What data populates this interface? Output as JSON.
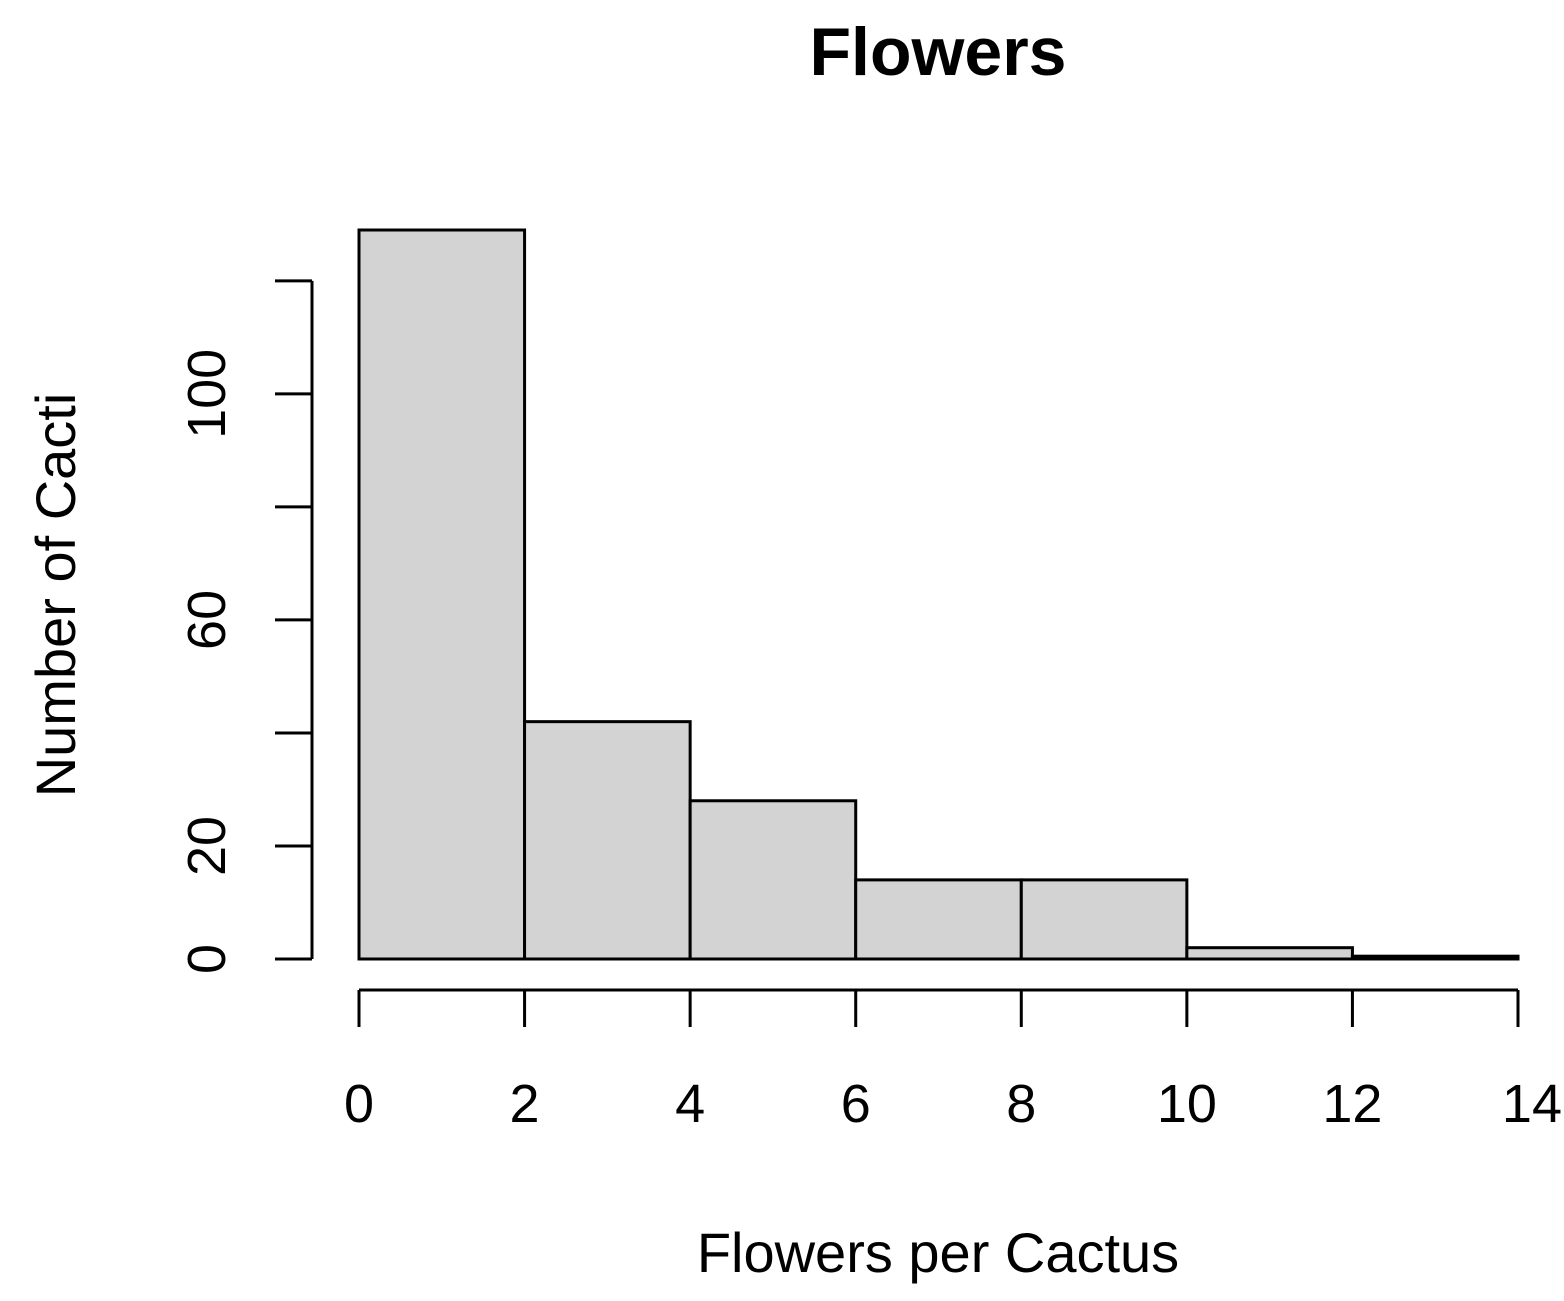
{
  "chart_data": {
    "type": "bar",
    "histogram": true,
    "title": "Flowers",
    "xlabel": "Flowers per Cactus",
    "ylabel": "Number of Cacti",
    "bins": [
      {
        "from": 0,
        "to": 2,
        "count": 129
      },
      {
        "from": 2,
        "to": 4,
        "count": 42
      },
      {
        "from": 4,
        "to": 6,
        "count": 28
      },
      {
        "from": 6,
        "to": 8,
        "count": 14
      },
      {
        "from": 8,
        "to": 10,
        "count": 14
      },
      {
        "from": 10,
        "to": 12,
        "count": 2
      },
      {
        "from": 12,
        "to": 14,
        "count": 0.5
      }
    ],
    "xlim": [
      0,
      14
    ],
    "ylim": [
      0,
      129
    ],
    "x_ticks": [
      0,
      2,
      4,
      6,
      8,
      10,
      12,
      14
    ],
    "y_ticks": [
      0,
      20,
      40,
      60,
      80,
      100,
      120
    ],
    "y_tick_labels": [
      "0",
      "20",
      "",
      "60",
      "",
      "100",
      ""
    ],
    "bar_color": "#d3d3d3",
    "grid": false,
    "legend": "none"
  }
}
